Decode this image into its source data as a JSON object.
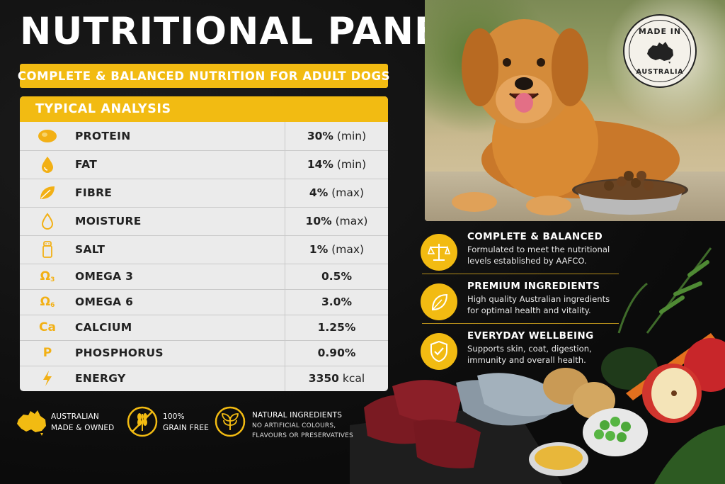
{
  "header": {
    "title": "NUTRITIONAL PANEL",
    "subtitle": "COMPLETE & BALANCED NUTRITION FOR ADULT DOGS"
  },
  "table": {
    "heading": "TYPICAL ANALYSIS",
    "rows": [
      {
        "icon": "protein-icon",
        "name": "PROTEIN",
        "value": "30%",
        "qualifier": "(min)"
      },
      {
        "icon": "fat-drop-icon",
        "name": "FAT",
        "value": "14%",
        "qualifier": "(min)"
      },
      {
        "icon": "leaf-icon",
        "name": "FIBRE",
        "value": "4%",
        "qualifier": "(max)"
      },
      {
        "icon": "water-drop-icon",
        "name": "MOISTURE",
        "value": "10%",
        "qualifier": "(max)"
      },
      {
        "icon": "salt-shaker-icon",
        "name": "SALT",
        "value": "1%",
        "qualifier": "(max)"
      },
      {
        "icon": "omega3-icon",
        "name": "OMEGA 3",
        "value": "0.5%",
        "qualifier": ""
      },
      {
        "icon": "omega6-icon",
        "name": "OMEGA 6",
        "value": "3.0%",
        "qualifier": ""
      },
      {
        "icon": "calcium-icon",
        "name": "CALCIUM",
        "value": "1.25%",
        "qualifier": ""
      },
      {
        "icon": "phosphorus-icon",
        "name": "PHOSPHORUS",
        "value": "0.90%",
        "qualifier": ""
      },
      {
        "icon": "lightning-icon",
        "name": "ENERGY",
        "value": "3350",
        "qualifier": "kcal"
      }
    ],
    "icon_text": {
      "omega": "Ω",
      "omega3_sub": "3",
      "omega6_sub": "6",
      "calcium": "Ca",
      "phosphorus": "P"
    }
  },
  "stamp": {
    "line1": "MADE IN",
    "line2": "AUSTRALIA"
  },
  "features": [
    {
      "icon": "scales-icon",
      "title": "COMPLETE & BALANCED",
      "desc": "Formulated to meet the nutritional levels established by AAFCO."
    },
    {
      "icon": "leaf-circle-icon",
      "title": "PREMIUM INGREDIENTS",
      "desc": "High quality Australian ingredients for optimal health and vitality."
    },
    {
      "icon": "shield-check-icon",
      "title": "EVERYDAY WELLBEING",
      "desc": "Supports skin, coat, digestion, immunity and overall health."
    }
  ],
  "badges": [
    {
      "icon": "australia-map-icon",
      "line1": "AUSTRALIAN",
      "line2": "MADE & OWNED"
    },
    {
      "icon": "grain-free-icon",
      "line1": "100%",
      "line2": "GRAIN FREE"
    },
    {
      "icon": "natural-leaf-icon",
      "line1": "NATURAL INGREDIENTS",
      "line2": "NO ARTIFICIAL COLOURS,",
      "line3": "FLAVOURS OR PRESERVATIVES"
    }
  ],
  "colors": {
    "accent": "#f2bb12",
    "background": "#0d0d0d",
    "table": "#ebebeb",
    "text_dark": "#222222"
  }
}
